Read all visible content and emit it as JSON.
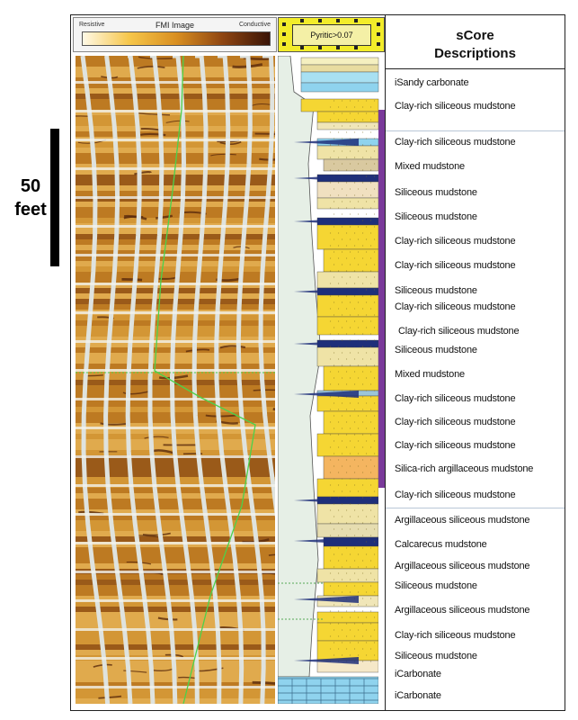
{
  "scale": {
    "value": "50",
    "unit": "feet"
  },
  "fmi_header": {
    "left_label": "Resistive",
    "title": "FMI Image",
    "right_label": "Conductive"
  },
  "pyritic_label": "Pyritic>0.07",
  "descriptions_title": {
    "line1": "sCore",
    "line2": "Descriptions"
  },
  "descriptions": [
    "iSandy carbonate",
    "Clay-rich siliceous mudstone",
    "Clay-rich siliceous mudstone",
    "Mixed mudstone",
    "Siliceous mudstone",
    "Siliceous mudstone",
    "Clay-rich siliceous mudstone",
    "Clay-rich siliceous mudstone",
    "Siliceous mudstone",
    "Clay-rich siliceous mudstone",
    "Clay-rich siliceous mudstone",
    "Siliceous mudstone",
    "Mixed mudstone",
    "Clay-rich siliceous mudstone",
    "Clay-rich siliceous mudstone",
    "Clay-rich siliceous mudstone",
    "Silica-rich argillaceous mudstone",
    "Clay-rich siliceous mudstone",
    "Argillaceous siliceous mudstone",
    "Calcarecus mudstone",
    "Argillaceous siliceous mudstone",
    "Siliceous mudstone",
    "Argillaceous siliceous mudstone",
    "Clay-rich siliceous mudstone",
    "Siliceous mudstone",
    "iCarbonate",
    "iCarbonate"
  ],
  "colors": {
    "fmi_base": "#c98a2a",
    "fmi_dark": "#5a2a0c",
    "siliceous": "#f5d633",
    "clay_rich": "#efe3a6",
    "mixed": "#d9c9a0",
    "carbonate": "#8fd3ee",
    "pyrite_band": "#1f2f7a",
    "calcareous": "#9cc5d8",
    "gamma_fill": "#e6efe6",
    "purple_bar": "#7a3a9a",
    "green_curve": "#4bd24b"
  }
}
